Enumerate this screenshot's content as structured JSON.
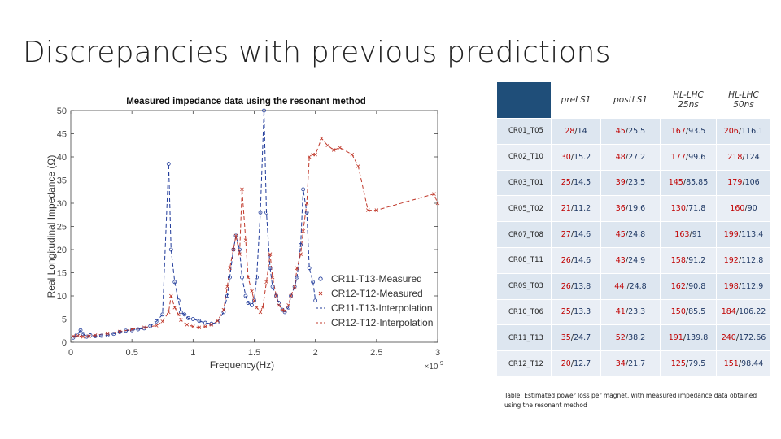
{
  "slide": {
    "title": "Discrepancies with previous predictions"
  },
  "chart_data": {
    "type": "line",
    "title": "Measured impedance data using the resonant method",
    "xlabel": "Frequency(Hz)",
    "ylabel": "Real Longitudinal Impedance (Ω)",
    "x_exponent": "×10",
    "x_exponent_power": "9",
    "xlim": [
      0,
      3
    ],
    "ylim": [
      0,
      50
    ],
    "xticks": [
      0,
      0.5,
      1,
      1.5,
      2,
      2.5,
      3
    ],
    "xtick_labels": [
      "0",
      "0.5",
      "1",
      "1.5",
      "2",
      "2.5",
      "3"
    ],
    "yticks": [
      0,
      5,
      10,
      15,
      20,
      25,
      30,
      35,
      40,
      45,
      50
    ],
    "ytick_labels": [
      "0",
      "5",
      "10",
      "15",
      "20",
      "25",
      "30",
      "35",
      "40",
      "45",
      "50"
    ],
    "legend_position": "bottom-right",
    "series": [
      {
        "name": "CR11-T13-Measured",
        "color": "#1f3a9a",
        "style": "markers",
        "marker": "circle",
        "x": [
          0.02,
          0.05,
          0.08,
          0.1,
          0.13,
          0.16,
          0.2,
          0.25,
          0.3,
          0.35,
          0.4,
          0.45,
          0.5,
          0.55,
          0.6,
          0.65,
          0.7,
          0.75,
          0.8,
          0.82,
          0.85,
          0.88,
          0.9,
          0.93,
          0.96,
          1.0,
          1.05,
          1.1,
          1.15,
          1.2,
          1.25,
          1.28,
          1.3,
          1.33,
          1.35,
          1.38,
          1.4,
          1.43,
          1.45,
          1.48,
          1.5,
          1.52,
          1.55,
          1.58,
          1.6,
          1.63,
          1.65,
          1.68,
          1.7,
          1.73,
          1.75,
          1.78,
          1.8,
          1.83,
          1.85,
          1.88,
          1.9,
          1.93,
          1.95,
          1.98,
          2.0
        ],
        "y": [
          1.0,
          1.6,
          2.6,
          1.8,
          1.2,
          1.5,
          1.3,
          1.4,
          1.5,
          1.8,
          2.2,
          2.5,
          2.6,
          2.8,
          3.0,
          3.5,
          4.5,
          6.0,
          38.5,
          20,
          13,
          9,
          6.5,
          6.0,
          5.2,
          5.0,
          4.6,
          4.2,
          4.0,
          4.3,
          6.5,
          10,
          14,
          20,
          23,
          20,
          14,
          10,
          8.5,
          8.0,
          9.0,
          14,
          28,
          50,
          28,
          16,
          12,
          10,
          8.5,
          7.0,
          6.5,
          7.5,
          10,
          12,
          14,
          21,
          33,
          28,
          16,
          13,
          9.0
        ]
      },
      {
        "name": "CR12-T12-Measured",
        "color": "#c0392b",
        "style": "markers",
        "marker": "x",
        "x": [
          0.02,
          0.06,
          0.1,
          0.15,
          0.2,
          0.3,
          0.4,
          0.5,
          0.6,
          0.7,
          0.75,
          0.8,
          0.82,
          0.85,
          0.88,
          0.9,
          0.95,
          1.0,
          1.05,
          1.1,
          1.15,
          1.2,
          1.25,
          1.28,
          1.3,
          1.33,
          1.35,
          1.38,
          1.4,
          1.43,
          1.45,
          1.48,
          1.5,
          1.52,
          1.55,
          1.57,
          1.6,
          1.63,
          1.65,
          1.68,
          1.7,
          1.73,
          1.75,
          1.78,
          1.8,
          1.83,
          1.85,
          1.88,
          1.9,
          1.93,
          1.95,
          1.98,
          2.0,
          2.05,
          2.1,
          2.15,
          2.2,
          2.3,
          2.35,
          2.43,
          2.5,
          2.97,
          3.0
        ],
        "y": [
          1.3,
          1.4,
          1.2,
          1.3,
          1.5,
          1.9,
          2.3,
          2.8,
          3.2,
          3.6,
          4.5,
          6.5,
          10,
          7.5,
          6.0,
          4.8,
          3.8,
          3.4,
          3.2,
          3.4,
          3.8,
          4.6,
          7.0,
          12,
          16,
          20,
          23,
          19,
          33,
          22,
          14,
          11,
          9.0,
          7.5,
          6.5,
          7.5,
          13,
          19,
          14,
          10,
          8.0,
          7.0,
          6.8,
          8.0,
          10,
          12,
          16,
          19,
          24,
          30,
          40,
          40.5,
          40.5,
          44,
          42.5,
          41.5,
          42,
          40.5,
          38,
          28.5,
          28.5,
          32,
          30
        ]
      },
      {
        "name": "CR11-T13-Interpolation",
        "color": "#1f3a9a",
        "style": "dashed",
        "marker": "none",
        "x": [
          0.02,
          0.05,
          0.08,
          0.1,
          0.13,
          0.16,
          0.2,
          0.25,
          0.3,
          0.35,
          0.4,
          0.45,
          0.5,
          0.55,
          0.6,
          0.65,
          0.7,
          0.75,
          0.8,
          0.82,
          0.85,
          0.88,
          0.9,
          0.93,
          0.96,
          1.0,
          1.05,
          1.1,
          1.15,
          1.2,
          1.25,
          1.28,
          1.3,
          1.33,
          1.35,
          1.38,
          1.4,
          1.43,
          1.45,
          1.48,
          1.5,
          1.52,
          1.55,
          1.58,
          1.6,
          1.63,
          1.65,
          1.68,
          1.7,
          1.73,
          1.75,
          1.78,
          1.8,
          1.83,
          1.85,
          1.88,
          1.9,
          1.93,
          1.95,
          1.98,
          2.0
        ],
        "y": [
          1.0,
          1.6,
          2.6,
          1.8,
          1.2,
          1.5,
          1.3,
          1.4,
          1.5,
          1.8,
          2.2,
          2.5,
          2.6,
          2.8,
          3.0,
          3.5,
          4.5,
          6.0,
          38.5,
          20,
          13,
          9,
          6.5,
          6.0,
          5.2,
          5.0,
          4.6,
          4.2,
          4.0,
          4.3,
          6.5,
          10,
          14,
          20,
          23,
          20,
          14,
          10,
          8.5,
          8.0,
          9.0,
          14,
          28,
          50,
          28,
          16,
          12,
          10,
          8.5,
          7.0,
          6.5,
          7.5,
          10,
          12,
          14,
          21,
          33,
          28,
          16,
          13,
          9.0
        ]
      },
      {
        "name": "CR12-T12-Interpolation",
        "color": "#c0392b",
        "style": "dashed",
        "marker": "none",
        "x": [
          0.02,
          0.06,
          0.1,
          0.15,
          0.2,
          0.3,
          0.4,
          0.5,
          0.6,
          0.7,
          0.75,
          0.8,
          0.82,
          0.85,
          0.88,
          0.9,
          0.95,
          1.0,
          1.05,
          1.1,
          1.15,
          1.2,
          1.25,
          1.28,
          1.3,
          1.33,
          1.35,
          1.38,
          1.4,
          1.43,
          1.45,
          1.48,
          1.5,
          1.52,
          1.55,
          1.57,
          1.6,
          1.63,
          1.65,
          1.68,
          1.7,
          1.73,
          1.75,
          1.78,
          1.8,
          1.83,
          1.85,
          1.88,
          1.9,
          1.93,
          1.95,
          1.98,
          2.0,
          2.05,
          2.1,
          2.15,
          2.2,
          2.3,
          2.35,
          2.43,
          2.5,
          2.97,
          3.0
        ],
        "y": [
          1.3,
          1.4,
          1.2,
          1.3,
          1.5,
          1.9,
          2.3,
          2.8,
          3.2,
          3.6,
          4.5,
          6.5,
          10,
          7.5,
          6.0,
          4.8,
          3.8,
          3.4,
          3.2,
          3.4,
          3.8,
          4.6,
          7.0,
          12,
          16,
          20,
          23,
          19,
          33,
          22,
          14,
          11,
          9.0,
          7.5,
          6.5,
          7.5,
          13,
          19,
          14,
          10,
          8.0,
          7.0,
          6.8,
          8.0,
          10,
          12,
          16,
          19,
          24,
          30,
          40,
          40.5,
          40.5,
          44,
          42.5,
          41.5,
          42,
          40.5,
          38,
          28.5,
          28.5,
          32,
          30
        ]
      }
    ]
  },
  "table": {
    "headers": [
      {
        "line1": "preLS1",
        "line2": ""
      },
      {
        "line1": "postLS1",
        "line2": ""
      },
      {
        "line1": "HL-LHC",
        "line2": "25ns"
      },
      {
        "line1": "HL-LHC",
        "line2": "50ns"
      }
    ],
    "rows": [
      {
        "label": "CR01_T05",
        "cells": [
          [
            "28",
            "14"
          ],
          [
            "45",
            "25.5"
          ],
          [
            "167",
            "93.5"
          ],
          [
            "206",
            "116.1"
          ]
        ]
      },
      {
        "label": "CR02_T10",
        "cells": [
          [
            "30",
            "15.2"
          ],
          [
            "48",
            "27.2"
          ],
          [
            "177",
            "99.6"
          ],
          [
            "218",
            "124"
          ]
        ]
      },
      {
        "label": "CR03_T01",
        "cells": [
          [
            "25",
            "14.5"
          ],
          [
            "39",
            "23.5"
          ],
          [
            "145",
            "85.85"
          ],
          [
            "179",
            "106"
          ]
        ]
      },
      {
        "label": "CR05_T02",
        "cells": [
          [
            "21",
            "11.2"
          ],
          [
            "36",
            "19.6"
          ],
          [
            "130",
            "71.8"
          ],
          [
            "160",
            "90"
          ]
        ]
      },
      {
        "label": "CR07_T08",
        "cells": [
          [
            "27",
            "14.6"
          ],
          [
            "45",
            "24.8"
          ],
          [
            "163",
            "91"
          ],
          [
            "199",
            "113.4"
          ]
        ]
      },
      {
        "label": "CR08_T11",
        "cells": [
          [
            "26",
            "14.6"
          ],
          [
            "43",
            "24.9"
          ],
          [
            "158",
            "91.2"
          ],
          [
            "192",
            "112.8"
          ]
        ]
      },
      {
        "label": "CR09_T03",
        "cells": [
          [
            "26",
            "13.8"
          ],
          [
            "44 ",
            "24.8"
          ],
          [
            "162",
            "90.8"
          ],
          [
            "198",
            "112.9"
          ]
        ]
      },
      {
        "label": "CR10_T06",
        "cells": [
          [
            "25",
            "13.3"
          ],
          [
            "41",
            "23.3"
          ],
          [
            "150",
            "85.5"
          ],
          [
            "184",
            "106.22"
          ]
        ]
      },
      {
        "label": "CR11_T13",
        "cells": [
          [
            "35",
            "24.7"
          ],
          [
            "52",
            "38.2"
          ],
          [
            "191",
            "139.8"
          ],
          [
            "240",
            "172.66"
          ]
        ]
      },
      {
        "label": "CR12_T12",
        "cells": [
          [
            "20",
            "12.7"
          ],
          [
            "34",
            "21.7"
          ],
          [
            "125",
            "79.5"
          ],
          [
            "151",
            "98.44"
          ]
        ]
      }
    ]
  },
  "caption": "Table: Estimated power loss per magnet, with measured impedance data obtained using the resonant method"
}
